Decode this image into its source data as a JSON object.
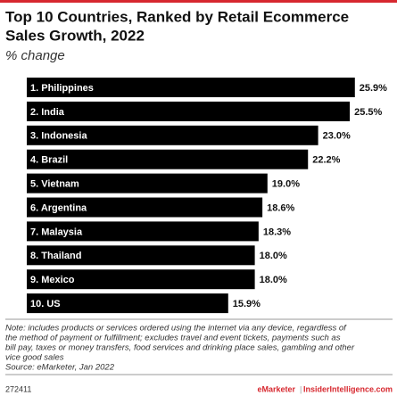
{
  "chart_data": {
    "type": "bar",
    "orientation": "horizontal",
    "title_lines": [
      "Top 10 Countries, Ranked by Retail Ecommerce",
      "Sales Growth, 2022"
    ],
    "subtitle": "% change",
    "categories": [
      "1. Philippines",
      "2. India",
      "3. Indonesia",
      "4. Brazil",
      "5. Vietnam",
      "6. Argentina",
      "7. Malaysia",
      "8. Thailand",
      "9. Mexico",
      "10. US"
    ],
    "values": [
      25.9,
      25.5,
      23.0,
      22.2,
      19.0,
      18.6,
      18.3,
      18.0,
      18.0,
      15.9
    ],
    "value_labels": [
      "25.9%",
      "25.5%",
      "23.0%",
      "22.2%",
      "19.0%",
      "18.6%",
      "18.3%",
      "18.0%",
      "18.0%",
      "15.9%"
    ],
    "color": "#000000",
    "note_lines": [
      "Note: includes products or services ordered using the internet via any device, regardless of",
      "the method of payment or fulfillment; excludes travel and event tickets, payments such as",
      "bill pay, taxes or money transfers, food services and drinking place sales, gambling and other",
      "vice good sales"
    ],
    "source": "Source: eMarketer, Jan 2022",
    "chart_id": "272411",
    "brand": "eMarketer",
    "brand_site": "InsiderIntelligence.com"
  }
}
